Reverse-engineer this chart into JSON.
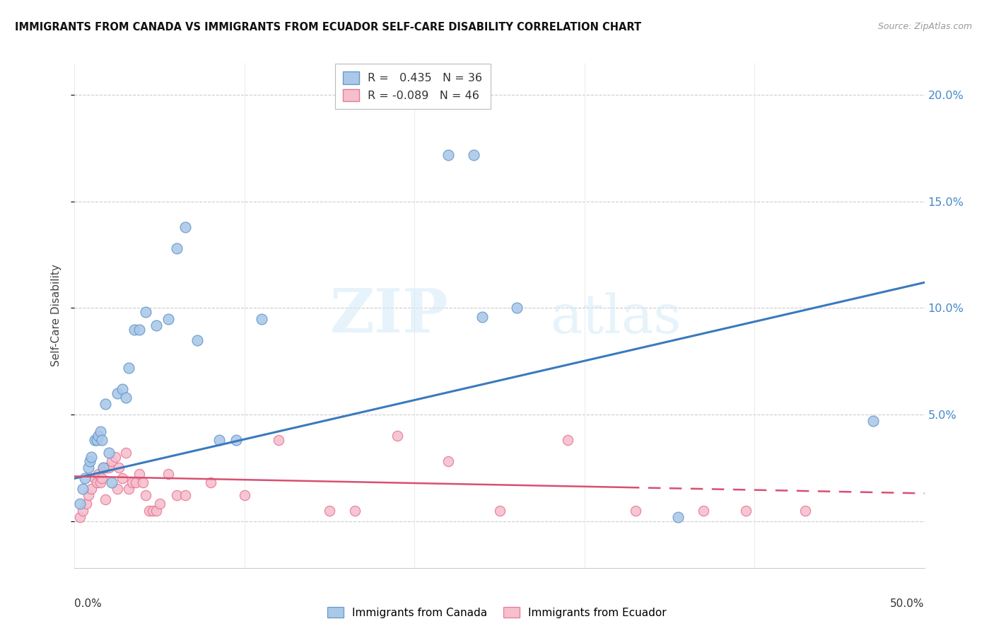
{
  "title": "IMMIGRANTS FROM CANADA VS IMMIGRANTS FROM ECUADOR SELF-CARE DISABILITY CORRELATION CHART",
  "source": "Source: ZipAtlas.com",
  "ylabel": "Self-Care Disability",
  "legend_label1": "Immigrants from Canada",
  "legend_label2": "Immigrants from Ecuador",
  "R1": 0.435,
  "N1": 36,
  "R2": -0.089,
  "N2": 46,
  "xlim": [
    0.0,
    0.5
  ],
  "ylim": [
    -0.022,
    0.215
  ],
  "yticks": [
    0.0,
    0.05,
    0.1,
    0.15,
    0.2
  ],
  "ytick_labels": [
    "",
    "5.0%",
    "10.0%",
    "15.0%",
    "20.0%"
  ],
  "watermark_zip": "ZIP",
  "watermark_atlas": "atlas",
  "canada_color": "#aac8e8",
  "canada_edge": "#6699cc",
  "ecuador_color": "#f5bfcc",
  "ecuador_edge": "#e87898",
  "trend_canada": "#3a7abf",
  "trend_ecuador": "#d94f72",
  "canada_x": [
    0.003,
    0.005,
    0.006,
    0.008,
    0.009,
    0.01,
    0.012,
    0.013,
    0.014,
    0.015,
    0.016,
    0.017,
    0.018,
    0.02,
    0.022,
    0.025,
    0.028,
    0.03,
    0.032,
    0.035,
    0.038,
    0.042,
    0.048,
    0.055,
    0.06,
    0.065,
    0.072,
    0.085,
    0.095,
    0.11,
    0.22,
    0.235,
    0.26,
    0.355,
    0.24,
    0.47
  ],
  "canada_y": [
    0.008,
    0.015,
    0.02,
    0.025,
    0.028,
    0.03,
    0.038,
    0.038,
    0.04,
    0.042,
    0.038,
    0.025,
    0.055,
    0.032,
    0.018,
    0.06,
    0.062,
    0.058,
    0.072,
    0.09,
    0.09,
    0.098,
    0.092,
    0.095,
    0.128,
    0.138,
    0.085,
    0.038,
    0.038,
    0.095,
    0.172,
    0.172,
    0.1,
    0.002,
    0.096,
    0.047
  ],
  "ecuador_x": [
    0.003,
    0.005,
    0.007,
    0.008,
    0.01,
    0.012,
    0.013,
    0.014,
    0.015,
    0.016,
    0.017,
    0.018,
    0.019,
    0.02,
    0.022,
    0.024,
    0.025,
    0.026,
    0.028,
    0.03,
    0.032,
    0.034,
    0.036,
    0.038,
    0.04,
    0.042,
    0.044,
    0.046,
    0.048,
    0.05,
    0.055,
    0.06,
    0.065,
    0.08,
    0.1,
    0.12,
    0.15,
    0.165,
    0.19,
    0.22,
    0.25,
    0.29,
    0.33,
    0.37,
    0.395,
    0.43
  ],
  "ecuador_y": [
    0.002,
    0.005,
    0.008,
    0.012,
    0.015,
    0.02,
    0.018,
    0.022,
    0.018,
    0.02,
    0.025,
    0.01,
    0.025,
    0.025,
    0.028,
    0.03,
    0.015,
    0.025,
    0.02,
    0.032,
    0.015,
    0.018,
    0.018,
    0.022,
    0.018,
    0.012,
    0.005,
    0.005,
    0.005,
    0.008,
    0.022,
    0.012,
    0.012,
    0.018,
    0.012,
    0.038,
    0.005,
    0.005,
    0.04,
    0.028,
    0.005,
    0.038,
    0.005,
    0.005,
    0.005,
    0.005
  ],
  "trend_canada_x0": 0.0,
  "trend_canada_y0": 0.02,
  "trend_canada_x1": 0.5,
  "trend_canada_y1": 0.112,
  "trend_ecuador_x0": 0.0,
  "trend_ecuador_y0": 0.021,
  "trend_ecuador_x1": 0.5,
  "trend_ecuador_y1": 0.013
}
